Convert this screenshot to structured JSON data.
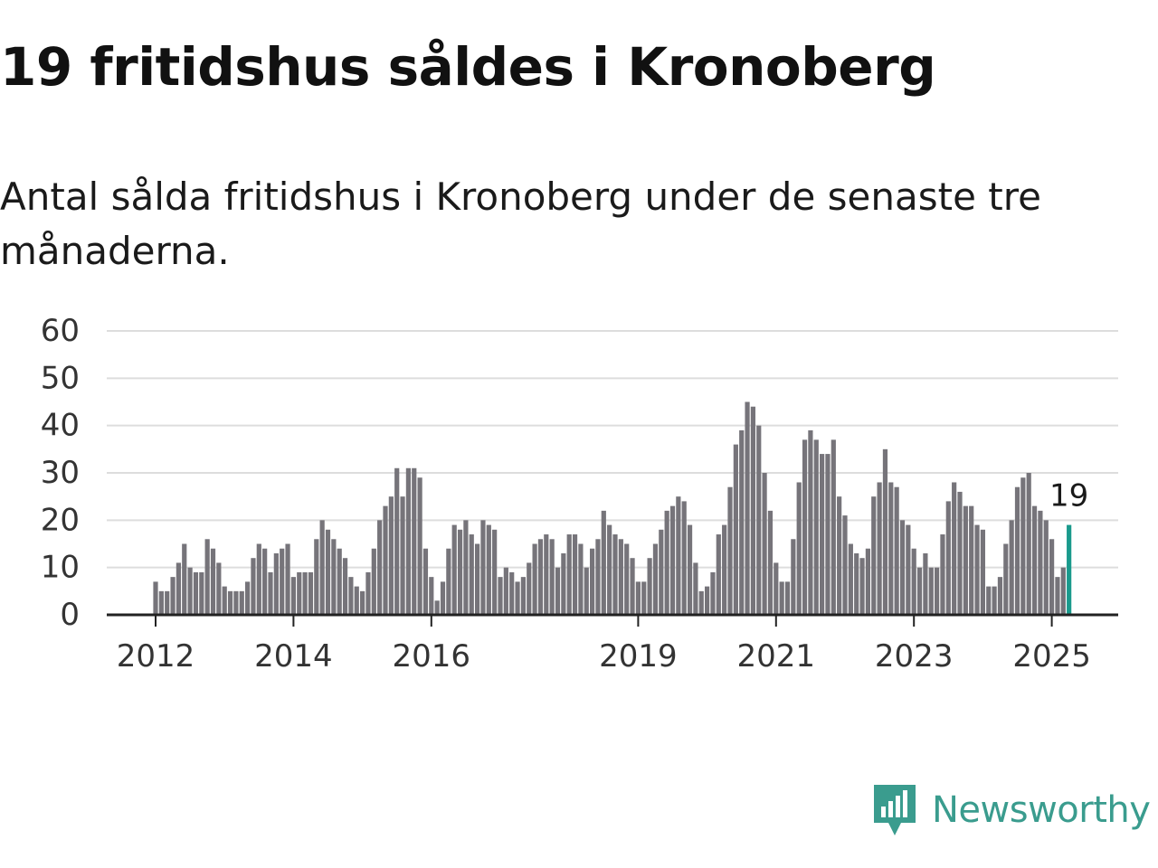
{
  "title": "19 fritidshus såldes i Kronoberg",
  "subtitle": "Antal sålda fritidshus i Kronoberg under de senaste tre månaderna.",
  "brand": {
    "name": "Newsworthy"
  },
  "colors": {
    "bar": "#76747a",
    "highlight": "#1a9a8c",
    "grid": "#dddddd",
    "axis": "#222222",
    "brand": "#3a9c8e"
  },
  "chart_data": {
    "type": "bar",
    "x_unit": "month",
    "series": [
      {
        "name": "",
        "start": "2012-01",
        "values": [
          7,
          5,
          5,
          8,
          11,
          15,
          10,
          9,
          9,
          16,
          14,
          11,
          6,
          5,
          5,
          5,
          7,
          12,
          15,
          14,
          9,
          13,
          14,
          15,
          8,
          9,
          9,
          9,
          16,
          20,
          18,
          16,
          14,
          12,
          8,
          6,
          5,
          9,
          14,
          20,
          23,
          25,
          31,
          25,
          31,
          31,
          29,
          14,
          8,
          3,
          7,
          14,
          19,
          18,
          20,
          17,
          15,
          20,
          19,
          18,
          8,
          10,
          9,
          7,
          8,
          11,
          15,
          16,
          17,
          16,
          10,
          13,
          17,
          17,
          15,
          10,
          14,
          16,
          22,
          19,
          17,
          16,
          15,
          12,
          7,
          7,
          12,
          15,
          18,
          22,
          23,
          25,
          24,
          19,
          11,
          5,
          6,
          9,
          17,
          19,
          27,
          36,
          39,
          45,
          44,
          40,
          30,
          22,
          11,
          7,
          7,
          16,
          28,
          37,
          39,
          37,
          34,
          34,
          37,
          25,
          21,
          15,
          13,
          12,
          14,
          25,
          28,
          35,
          28,
          27,
          20,
          19,
          14,
          10,
          13,
          10,
          10,
          17,
          24,
          28,
          26,
          23,
          23,
          19,
          18,
          6,
          6,
          8,
          15,
          20,
          27,
          29,
          30,
          23,
          22,
          20,
          16,
          8,
          10,
          19
        ]
      }
    ],
    "x_tick_labels": [
      "2012",
      "2014",
      "2016",
      "2019",
      "2021",
      "2023",
      "2025"
    ],
    "y_ticks": [
      0,
      10,
      20,
      30,
      40,
      50,
      60
    ],
    "ylim": [
      0,
      60
    ],
    "annotation": {
      "label": "19",
      "value": 19,
      "target": "last"
    },
    "grid": true,
    "legend": "none"
  }
}
